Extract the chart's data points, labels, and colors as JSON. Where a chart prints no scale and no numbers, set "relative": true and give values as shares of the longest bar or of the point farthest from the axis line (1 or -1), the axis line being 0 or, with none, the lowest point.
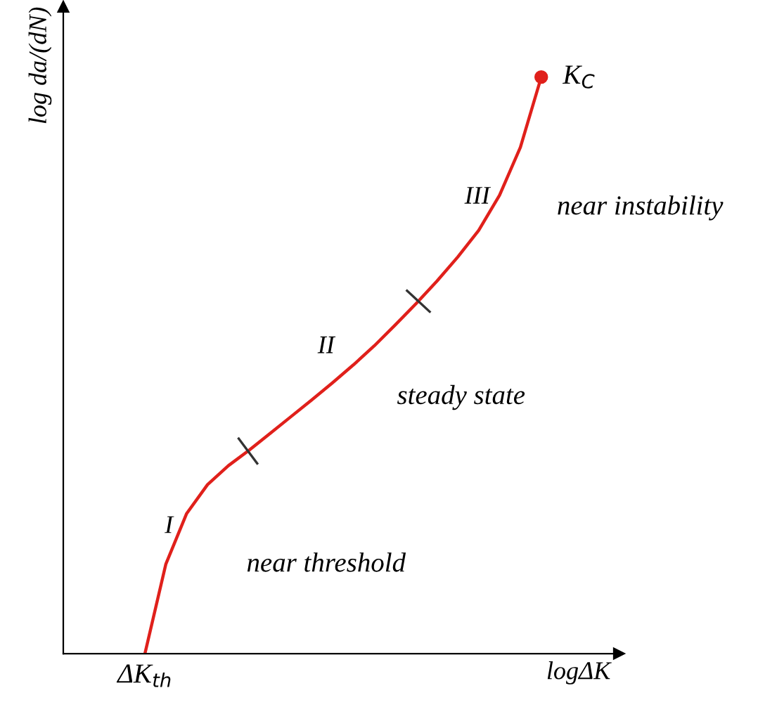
{
  "chart_data": {
    "type": "line",
    "relative": true,
    "xlabel": "logΔK",
    "ylabel": "log da/(dN)",
    "marker": "none",
    "line_style": "solid",
    "categories": [
      null,
      null,
      null,
      null,
      null,
      null,
      null,
      null,
      null,
      null,
      null,
      null,
      null,
      null,
      null,
      null,
      null,
      null,
      null,
      null
    ],
    "series": [
      {
        "color": "#e0201b",
        "values": [
          0,
          0.155,
          0.243,
          0.293,
          0.326,
          0.353,
          0.382,
          0.411,
          0.44,
          0.47,
          0.501,
          0.534,
          0.57,
          0.607,
          0.646,
          0.688,
          0.734,
          0.795,
          0.878,
          1
        ]
      }
    ],
    "annotations": [
      "ΔK$_{th}$",
      "K$_{C}$",
      "I",
      "II",
      "III",
      "near threshold",
      "steady state",
      "near instability"
    ]
  }
}
